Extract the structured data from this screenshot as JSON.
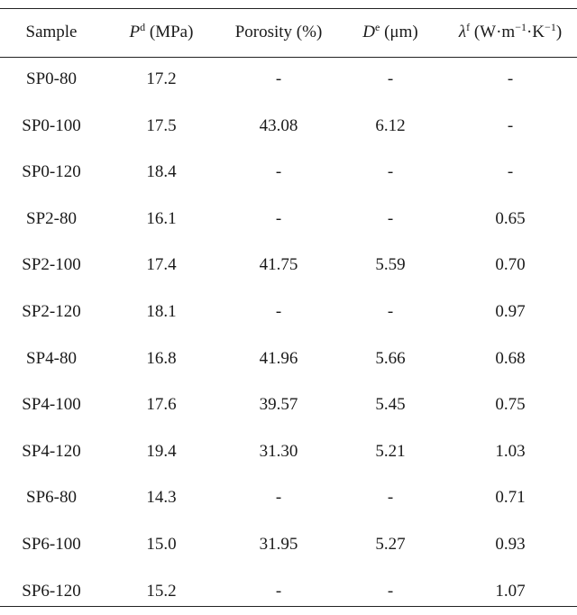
{
  "header": {
    "sample": "Sample",
    "p_var": "P",
    "p_sup": "d",
    "p_unit": " (MPa)",
    "porosity": "Porosity (%)",
    "d_var": "D",
    "d_sup": "e",
    "d_unit": " (μm)",
    "l_var": "λ",
    "l_sup": "f",
    "l_unit_a": " (W·m",
    "l_unit_sup1": "−1",
    "l_unit_b": "·K",
    "l_unit_sup2": "−1",
    "l_unit_c": ")"
  },
  "rows": [
    {
      "sample": "SP0-80",
      "p": "17.2",
      "porosity": "-",
      "d": "-",
      "lambda": "-"
    },
    {
      "sample": "SP0-100",
      "p": "17.5",
      "porosity": "43.08",
      "d": "6.12",
      "lambda": "-"
    },
    {
      "sample": "SP0-120",
      "p": "18.4",
      "porosity": "-",
      "d": "-",
      "lambda": "-"
    },
    {
      "sample": "SP2-80",
      "p": "16.1",
      "porosity": "-",
      "d": "-",
      "lambda": "0.65"
    },
    {
      "sample": "SP2-100",
      "p": "17.4",
      "porosity": "41.75",
      "d": "5.59",
      "lambda": "0.70"
    },
    {
      "sample": "SP2-120",
      "p": "18.1",
      "porosity": "-",
      "d": "-",
      "lambda": "0.97"
    },
    {
      "sample": "SP4-80",
      "p": "16.8",
      "porosity": "41.96",
      "d": "5.66",
      "lambda": "0.68"
    },
    {
      "sample": "SP4-100",
      "p": "17.6",
      "porosity": "39.57",
      "d": "5.45",
      "lambda": "0.75"
    },
    {
      "sample": "SP4-120",
      "p": "19.4",
      "porosity": "31.30",
      "d": "5.21",
      "lambda": "1.03"
    },
    {
      "sample": "SP6-80",
      "p": "14.3",
      "porosity": "-",
      "d": "-",
      "lambda": "0.71"
    },
    {
      "sample": "SP6-100",
      "p": "15.0",
      "porosity": "31.95",
      "d": "5.27",
      "lambda": "0.93"
    },
    {
      "sample": "SP6-120",
      "p": "15.2",
      "porosity": "-",
      "d": "-",
      "lambda": "1.07"
    }
  ]
}
